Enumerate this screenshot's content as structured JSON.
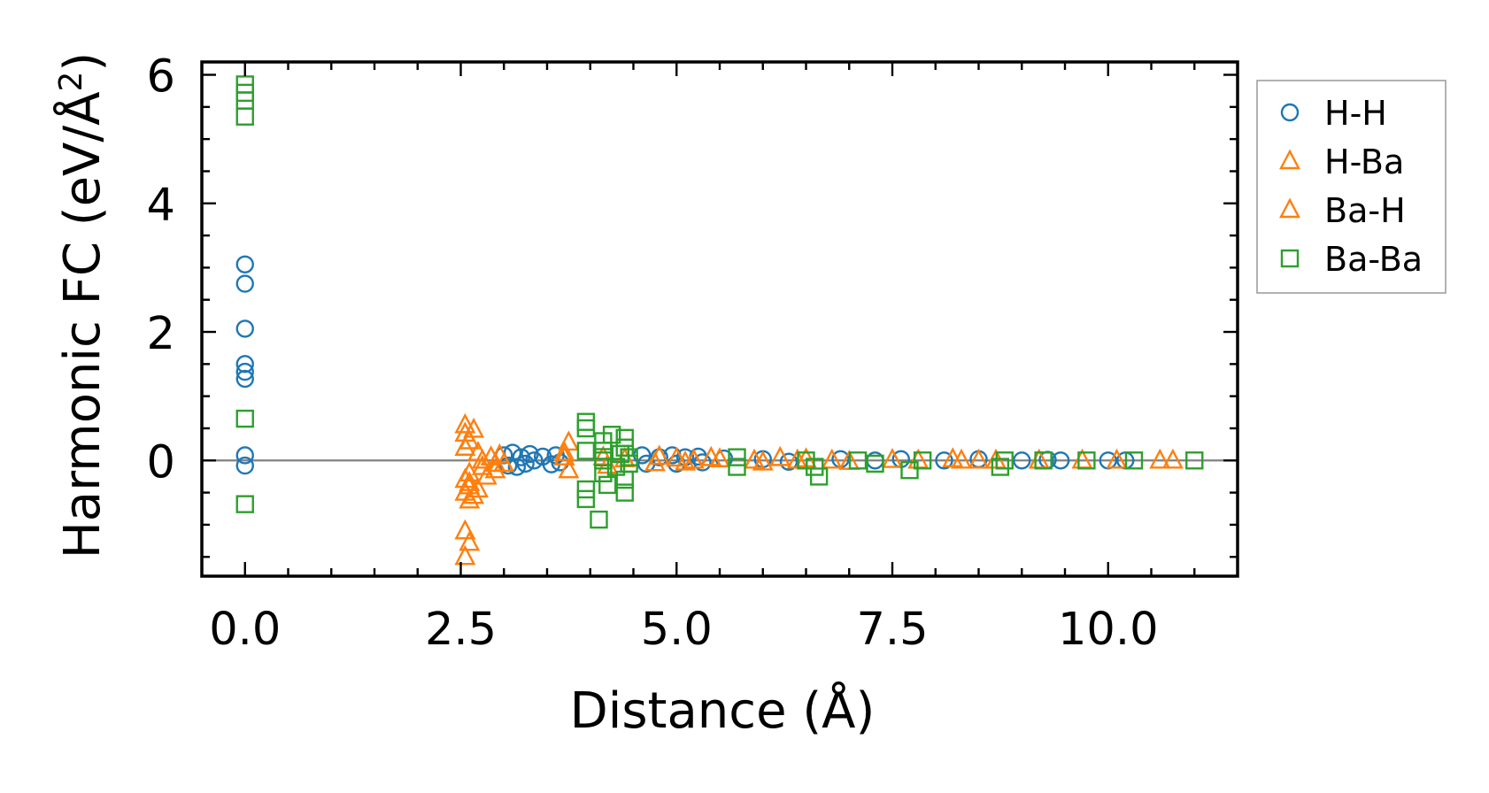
{
  "chart_data": {
    "type": "scatter",
    "xlabel": "Distance (Å)",
    "ylabel_main": "Harmonic FC (eV/Å",
    "ylabel_sup": "2",
    "ylabel_close": ")",
    "xlim": [
      -0.5,
      11.5
    ],
    "ylim": [
      -1.8,
      6.2
    ],
    "xticks": [
      0.0,
      2.5,
      5.0,
      7.5,
      10.0
    ],
    "xtick_labels": [
      "0.0",
      "2.5",
      "5.0",
      "7.5",
      "10.0"
    ],
    "yticks": [
      0,
      2,
      4,
      6
    ],
    "ytick_labels": [
      "0",
      "2",
      "4",
      "6"
    ],
    "zero_line": 0,
    "legend_position": "right, outside plot",
    "series": [
      {
        "name": "H-H",
        "marker": "circle",
        "color": "#1f77b4",
        "points": [
          [
            0,
            3.05
          ],
          [
            0,
            2.75
          ],
          [
            0,
            2.05
          ],
          [
            0,
            1.5
          ],
          [
            0,
            1.38
          ],
          [
            0,
            1.27
          ],
          [
            0,
            0.08
          ],
          [
            0,
            -0.08
          ],
          [
            3.0,
            0.08
          ],
          [
            3.05,
            -0.08
          ],
          [
            3.1,
            0.12
          ],
          [
            3.15,
            -0.1
          ],
          [
            3.2,
            0.05
          ],
          [
            3.25,
            -0.05
          ],
          [
            3.3,
            0.1
          ],
          [
            3.35,
            0.0
          ],
          [
            3.45,
            0.06
          ],
          [
            3.55,
            -0.06
          ],
          [
            3.6,
            0.08
          ],
          [
            3.65,
            -0.03
          ],
          [
            4.6,
            0.08
          ],
          [
            4.65,
            -0.05
          ],
          [
            4.8,
            0.05
          ],
          [
            4.95,
            0.08
          ],
          [
            5.0,
            -0.05
          ],
          [
            5.1,
            0.05
          ],
          [
            5.25,
            0.06
          ],
          [
            5.3,
            -0.03
          ],
          [
            5.55,
            0.03
          ],
          [
            6.0,
            0.02
          ],
          [
            6.3,
            -0.02
          ],
          [
            6.9,
            0.02
          ],
          [
            7.3,
            0.0
          ],
          [
            7.6,
            0.02
          ],
          [
            8.1,
            0.0
          ],
          [
            8.5,
            0.02
          ],
          [
            9.0,
            0.0
          ],
          [
            9.3,
            0.01
          ],
          [
            9.45,
            0.0
          ],
          [
            10.0,
            0.0
          ],
          [
            10.2,
            0.0
          ]
        ]
      },
      {
        "name": "H-Ba",
        "marker": "triangle",
        "color": "#ff7f0e",
        "points": [
          [
            2.55,
            0.55
          ],
          [
            2.55,
            0.42
          ],
          [
            2.6,
            0.3
          ],
          [
            2.55,
            0.2
          ],
          [
            2.6,
            -0.2
          ],
          [
            2.55,
            -0.3
          ],
          [
            2.6,
            -0.4
          ],
          [
            2.55,
            -0.5
          ],
          [
            2.65,
            -0.55
          ],
          [
            2.6,
            -0.62
          ],
          [
            2.55,
            -1.1
          ],
          [
            2.6,
            -1.28
          ],
          [
            2.55,
            -1.5
          ],
          [
            2.7,
            0.12
          ],
          [
            2.75,
            -0.1
          ],
          [
            2.8,
            -0.25
          ],
          [
            2.85,
            0.05
          ],
          [
            2.9,
            -0.15
          ],
          [
            2.95,
            0.08
          ],
          [
            3.0,
            -0.05
          ],
          [
            3.75,
            0.28
          ],
          [
            3.7,
            0.12
          ],
          [
            3.75,
            -0.15
          ],
          [
            4.15,
            0.05
          ],
          [
            4.2,
            -0.08
          ],
          [
            4.4,
            0.02
          ],
          [
            4.8,
            0.06
          ],
          [
            5.0,
            0.03
          ],
          [
            5.2,
            0.0
          ],
          [
            5.5,
            0.02
          ],
          [
            5.9,
            0.0
          ],
          [
            6.2,
            0.04
          ],
          [
            6.5,
            0.02
          ],
          [
            6.8,
            0.0
          ],
          [
            7.5,
            0.01
          ],
          [
            8.2,
            0.02
          ],
          [
            8.5,
            0.0
          ]
        ]
      },
      {
        "name": "Ba-H",
        "marker": "triangle",
        "color": "#ff7f0e",
        "points": [
          [
            2.65,
            0.48
          ],
          [
            2.6,
            -0.35
          ],
          [
            2.7,
            -0.45
          ],
          [
            2.75,
            0.0
          ],
          [
            2.9,
            -0.05
          ],
          [
            3.7,
            0.05
          ],
          [
            4.75,
            -0.04
          ],
          [
            5.1,
            -0.03
          ],
          [
            5.4,
            0.04
          ],
          [
            6.0,
            -0.03
          ],
          [
            6.4,
            0.0
          ],
          [
            7.0,
            -0.02
          ],
          [
            7.8,
            0.0
          ],
          [
            8.3,
            0.0
          ],
          [
            8.7,
            0.0
          ],
          [
            9.2,
            0.0
          ],
          [
            9.7,
            0.0
          ],
          [
            10.1,
            0.0
          ],
          [
            10.6,
            0.0
          ],
          [
            10.75,
            0.0
          ]
        ]
      },
      {
        "name": "Ba-Ba",
        "marker": "square",
        "color": "#2ca02c",
        "points": [
          [
            0,
            5.85
          ],
          [
            0,
            5.72
          ],
          [
            0,
            5.6
          ],
          [
            0,
            5.35
          ],
          [
            0,
            0.65
          ],
          [
            0,
            -0.68
          ],
          [
            3.95,
            0.6
          ],
          [
            3.95,
            0.5
          ],
          [
            3.95,
            0.15
          ],
          [
            3.95,
            -0.45
          ],
          [
            3.95,
            -0.6
          ],
          [
            4.1,
            -0.92
          ],
          [
            4.15,
            0.3
          ],
          [
            4.15,
            0.15
          ],
          [
            4.15,
            0.0
          ],
          [
            4.15,
            -0.2
          ],
          [
            4.2,
            -0.38
          ],
          [
            4.25,
            0.4
          ],
          [
            4.3,
            -0.1
          ],
          [
            4.35,
            0.1
          ],
          [
            4.4,
            0.35
          ],
          [
            4.4,
            0.2
          ],
          [
            4.4,
            -0.3
          ],
          [
            4.4,
            -0.5
          ],
          [
            4.45,
            0.05
          ],
          [
            4.45,
            -0.05
          ],
          [
            5.7,
            0.05
          ],
          [
            5.7,
            -0.1
          ],
          [
            6.5,
            0.0
          ],
          [
            6.6,
            -0.1
          ],
          [
            6.65,
            -0.25
          ],
          [
            7.1,
            0.0
          ],
          [
            7.3,
            -0.05
          ],
          [
            7.7,
            -0.15
          ],
          [
            7.85,
            0.0
          ],
          [
            8.75,
            -0.1
          ],
          [
            8.8,
            0.0
          ],
          [
            9.25,
            0.0
          ],
          [
            9.75,
            0.0
          ],
          [
            10.3,
            0.0
          ],
          [
            11.0,
            0.0
          ]
        ]
      }
    ]
  }
}
